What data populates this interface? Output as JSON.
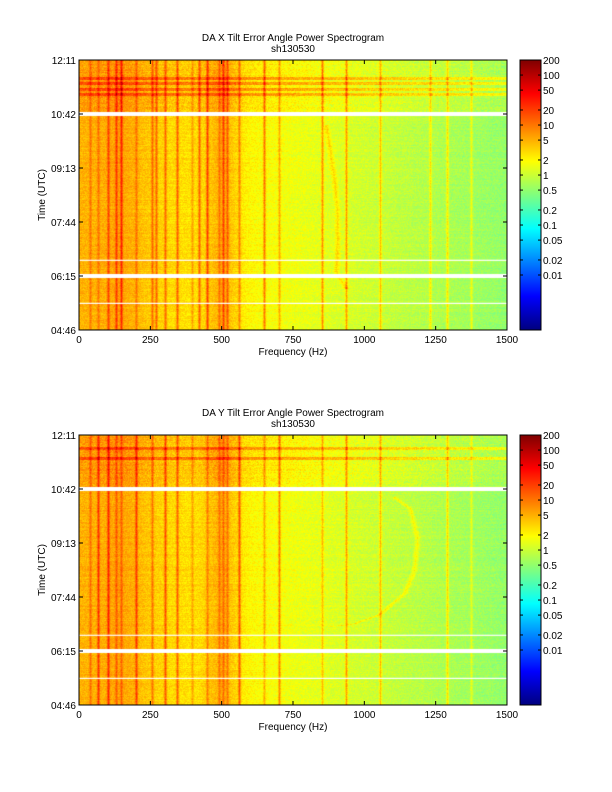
{
  "colorbar_ticks": [
    "200",
    "100",
    "50",
    "20",
    "10",
    "5",
    "2",
    "1",
    "0.5",
    "0.2",
    "0.1",
    "0.05",
    "0.02",
    "0.01"
  ],
  "colormap": [
    "#00007f",
    "#0000ff",
    "#007fff",
    "#00ffff",
    "#7fff7f",
    "#ffff00",
    "#ff7f00",
    "#ff0000",
    "#7f0000"
  ],
  "chart_data": [
    {
      "type": "heatmap",
      "title": "DA X Tilt Error Angle Power Spectrogram",
      "subtitle": "sh130530",
      "xlabel": "Frequency (Hz)",
      "ylabel": "Time (UTC)",
      "xlim": [
        0,
        1500
      ],
      "x_ticks": [
        "0",
        "250",
        "500",
        "750",
        "1000",
        "1250",
        "1500"
      ],
      "y_ticks": [
        "12:11",
        "10:42",
        "09:13",
        "07:44",
        "06:15",
        "04:46"
      ],
      "time_range_utc": [
        "04:46",
        "12:11"
      ],
      "colorbar_range": [
        0.01,
        200
      ],
      "data_gaps_utc": [
        "10:42",
        "06:15"
      ],
      "thin_gaps_utc": [
        "06:41",
        "05:30"
      ],
      "dense_bands_utc": [
        "11:15",
        "11:24",
        "11:33",
        "11:42"
      ],
      "dominant_lines_hz": [
        40,
        65,
        100,
        130,
        148,
        200,
        255,
        270,
        300,
        345,
        395,
        420,
        450,
        490,
        505,
        520,
        560,
        650,
        700,
        850,
        935,
        1055,
        1230,
        1290,
        1375
      ],
      "sweep_track": [
        {
          "time_utc": "10:25",
          "freq_hz": 865
        },
        {
          "time_utc": "09:40",
          "freq_hz": 880
        },
        {
          "time_utc": "08:50",
          "freq_hz": 895
        },
        {
          "time_utc": "08:00",
          "freq_hz": 905
        },
        {
          "time_utc": "07:00",
          "freq_hz": 905
        },
        {
          "time_utc": "06:20",
          "freq_hz": 900
        },
        {
          "time_utc": "05:55",
          "freq_hz": 935
        }
      ]
    },
    {
      "type": "heatmap",
      "title": "DA Y Tilt Error Angle Power Spectrogram",
      "subtitle": "sh130530",
      "xlabel": "Frequency (Hz)",
      "ylabel": "Time (UTC)",
      "xlim": [
        0,
        1500
      ],
      "x_ticks": [
        "0",
        "250",
        "500",
        "750",
        "1000",
        "1250",
        "1500"
      ],
      "y_ticks": [
        "12:11",
        "10:42",
        "09:13",
        "07:44",
        "06:15",
        "04:46"
      ],
      "time_range_utc": [
        "04:46",
        "12:11"
      ],
      "colorbar_range": [
        0.01,
        200
      ],
      "data_gaps_utc": [
        "10:42",
        "06:15"
      ],
      "thin_gaps_utc": [
        "06:41",
        "05:30"
      ],
      "dense_bands_utc": [
        "11:33",
        "11:50"
      ],
      "dominant_lines_hz": [
        40,
        65,
        100,
        130,
        148,
        200,
        255,
        300,
        345,
        395,
        450,
        490,
        505,
        520,
        560,
        650,
        700,
        850,
        935,
        1055,
        1290,
        1375
      ],
      "sweep_track": [
        {
          "time_utc": "10:30",
          "freq_hz": 1100
        },
        {
          "time_utc": "10:10",
          "freq_hz": 1160
        },
        {
          "time_utc": "09:20",
          "freq_hz": 1185
        },
        {
          "time_utc": "08:30",
          "freq_hz": 1175
        },
        {
          "time_utc": "07:50",
          "freq_hz": 1140
        },
        {
          "time_utc": "07:15",
          "freq_hz": 1050
        },
        {
          "time_utc": "07:00",
          "freq_hz": 960
        },
        {
          "time_utc": "06:55",
          "freq_hz": 860
        }
      ]
    }
  ]
}
